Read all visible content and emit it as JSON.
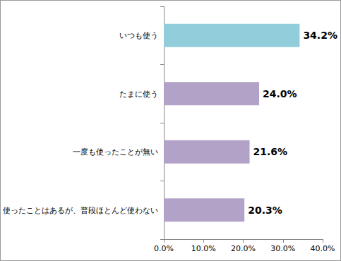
{
  "chart_data": {
    "type": "bar",
    "orientation": "horizontal",
    "categories": [
      "いつも使う",
      "たまに使う",
      "一度も使ったことが無い",
      "使ったことはあるが、普段ほとんど使わない"
    ],
    "values": [
      34.2,
      24.0,
      21.6,
      20.3
    ],
    "value_labels": [
      "34.2%",
      "24.0%",
      "21.6%",
      "20.3%"
    ],
    "colors": [
      "#92cddc",
      "#b3a2c7",
      "#b3a2c7",
      "#b3a2c7"
    ],
    "xlim": [
      0,
      40
    ],
    "xticks": [
      {
        "value": 0,
        "label": "0.0%"
      },
      {
        "value": 10,
        "label": "10.0%"
      },
      {
        "value": 20,
        "label": "20.0%"
      },
      {
        "value": 30,
        "label": "30.0%"
      },
      {
        "value": 40,
        "label": "40.0%"
      }
    ],
    "grid": false,
    "data_labels": true
  }
}
